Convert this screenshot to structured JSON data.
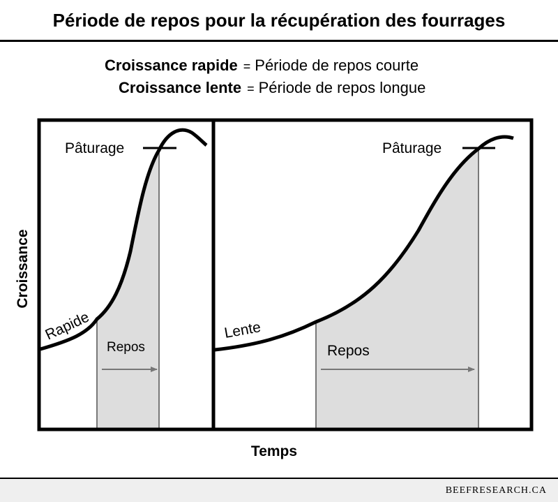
{
  "title": "Période de repos pour la récupération des fourrages",
  "legend": {
    "fast_label": "Croissance rapide",
    "fast_desc": "Période de repos courte",
    "slow_label": "Croissance lente",
    "slow_desc": "Période de repos longue",
    "equals": "="
  },
  "axes": {
    "y": "Croissance",
    "x": "Temps"
  },
  "left_panel": {
    "curve_label": "Rapide",
    "grazing_label": "Pâturage",
    "rest_label": "Repos"
  },
  "right_panel": {
    "curve_label": "Lente",
    "grazing_label": "Pâturage",
    "rest_label": "Repos"
  },
  "footer": "BEEFRESEARCH.CA",
  "colors": {
    "shade": "#dddddd",
    "line": "#000000",
    "rest_line": "#777777",
    "footer_bg": "#efefef"
  }
}
